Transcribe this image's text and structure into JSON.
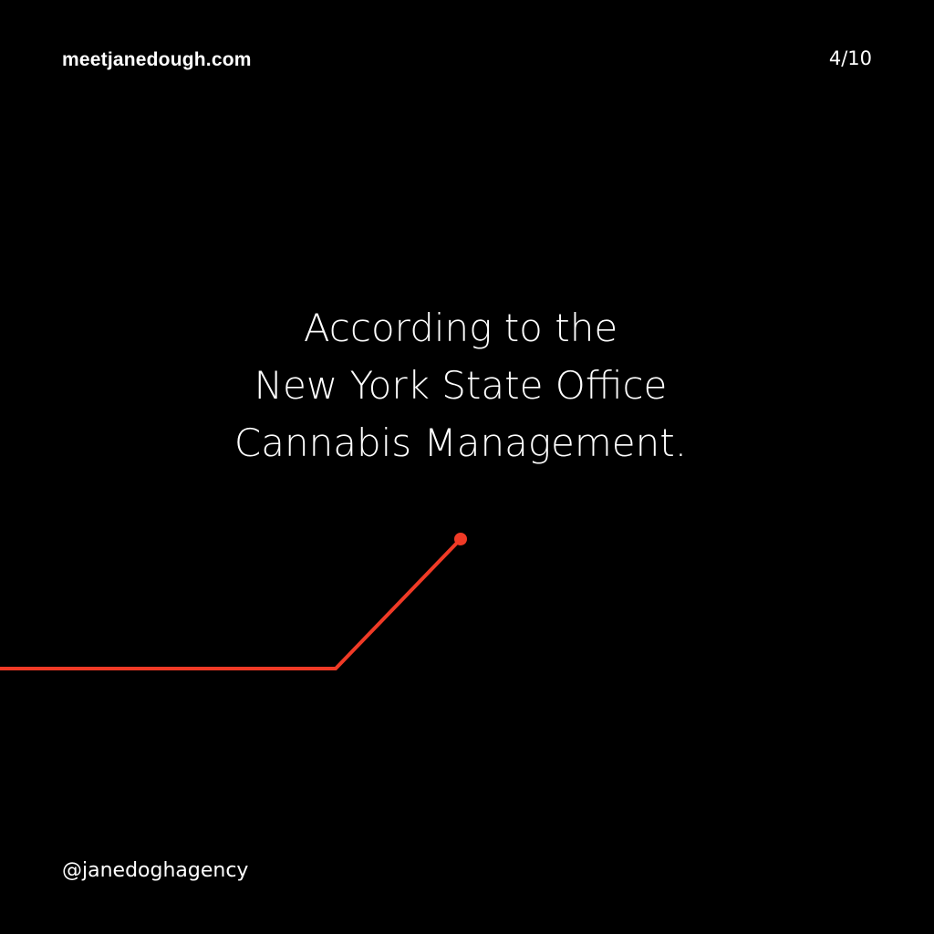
{
  "header": {
    "brand": "meetjanedough.com",
    "page_indicator": "4/10"
  },
  "headline": {
    "lines": [
      "According to the",
      "New York State Office",
      "Cannabis Management."
    ]
  },
  "footer": {
    "handle": "@janedoghagency"
  },
  "colors": {
    "background": "#000000",
    "text": "#ffffff",
    "accent": "#f03a26"
  }
}
